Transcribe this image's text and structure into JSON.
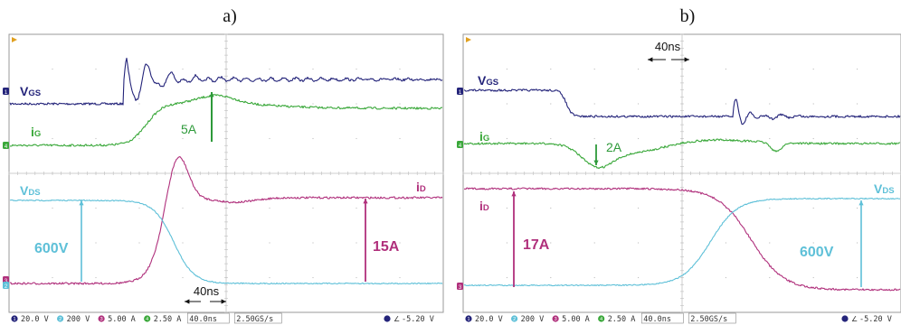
{
  "figure": {
    "panels": [
      "a)",
      "b)"
    ]
  },
  "colors": {
    "vgs": "#24247a",
    "ig": "#3aa83a",
    "vds": "#5ec0d8",
    "id": "#b0307c",
    "grid": "#cfcfcf",
    "frame": "#9a9a9a"
  },
  "chart_data": [
    {
      "type": "line",
      "panel": "a)",
      "x": "time, 40ns/div",
      "series": [
        {
          "name": "VGS",
          "label": "VGS",
          "sub": "GS",
          "main": "V"
        },
        {
          "name": "iG",
          "label": "iG",
          "sub": "G",
          "main": "i"
        },
        {
          "name": "VDS",
          "label": "VDS",
          "sub": "DS",
          "main": "V"
        },
        {
          "name": "iD",
          "label": "iD",
          "sub": "D",
          "main": "i"
        }
      ],
      "annotations": [
        "5A",
        "600V",
        "15A",
        "40ns"
      ],
      "status_bar": [
        "20.0 V",
        "200 V",
        "5.00 A",
        "2.50 A",
        "40.0ns",
        "2.50GS/s",
        "-5.20 V"
      ]
    },
    {
      "type": "line",
      "panel": "b)",
      "x": "time, 40ns/div",
      "series": [
        {
          "name": "VGS",
          "label": "VGS",
          "sub": "GS",
          "main": "V"
        },
        {
          "name": "iG",
          "label": "iG",
          "sub": "G",
          "main": "i"
        },
        {
          "name": "VDS",
          "label": "VDS",
          "sub": "DS",
          "main": "V"
        },
        {
          "name": "iD",
          "label": "iD",
          "sub": "D",
          "main": "i"
        }
      ],
      "annotations": [
        "40ns",
        "2A",
        "17A",
        "600V"
      ],
      "status_bar": [
        "20.0 V",
        "200 V",
        "5.00 A",
        "2.50 A",
        "40.0ns",
        "2.50GS/s",
        "-5.20 V"
      ]
    }
  ]
}
